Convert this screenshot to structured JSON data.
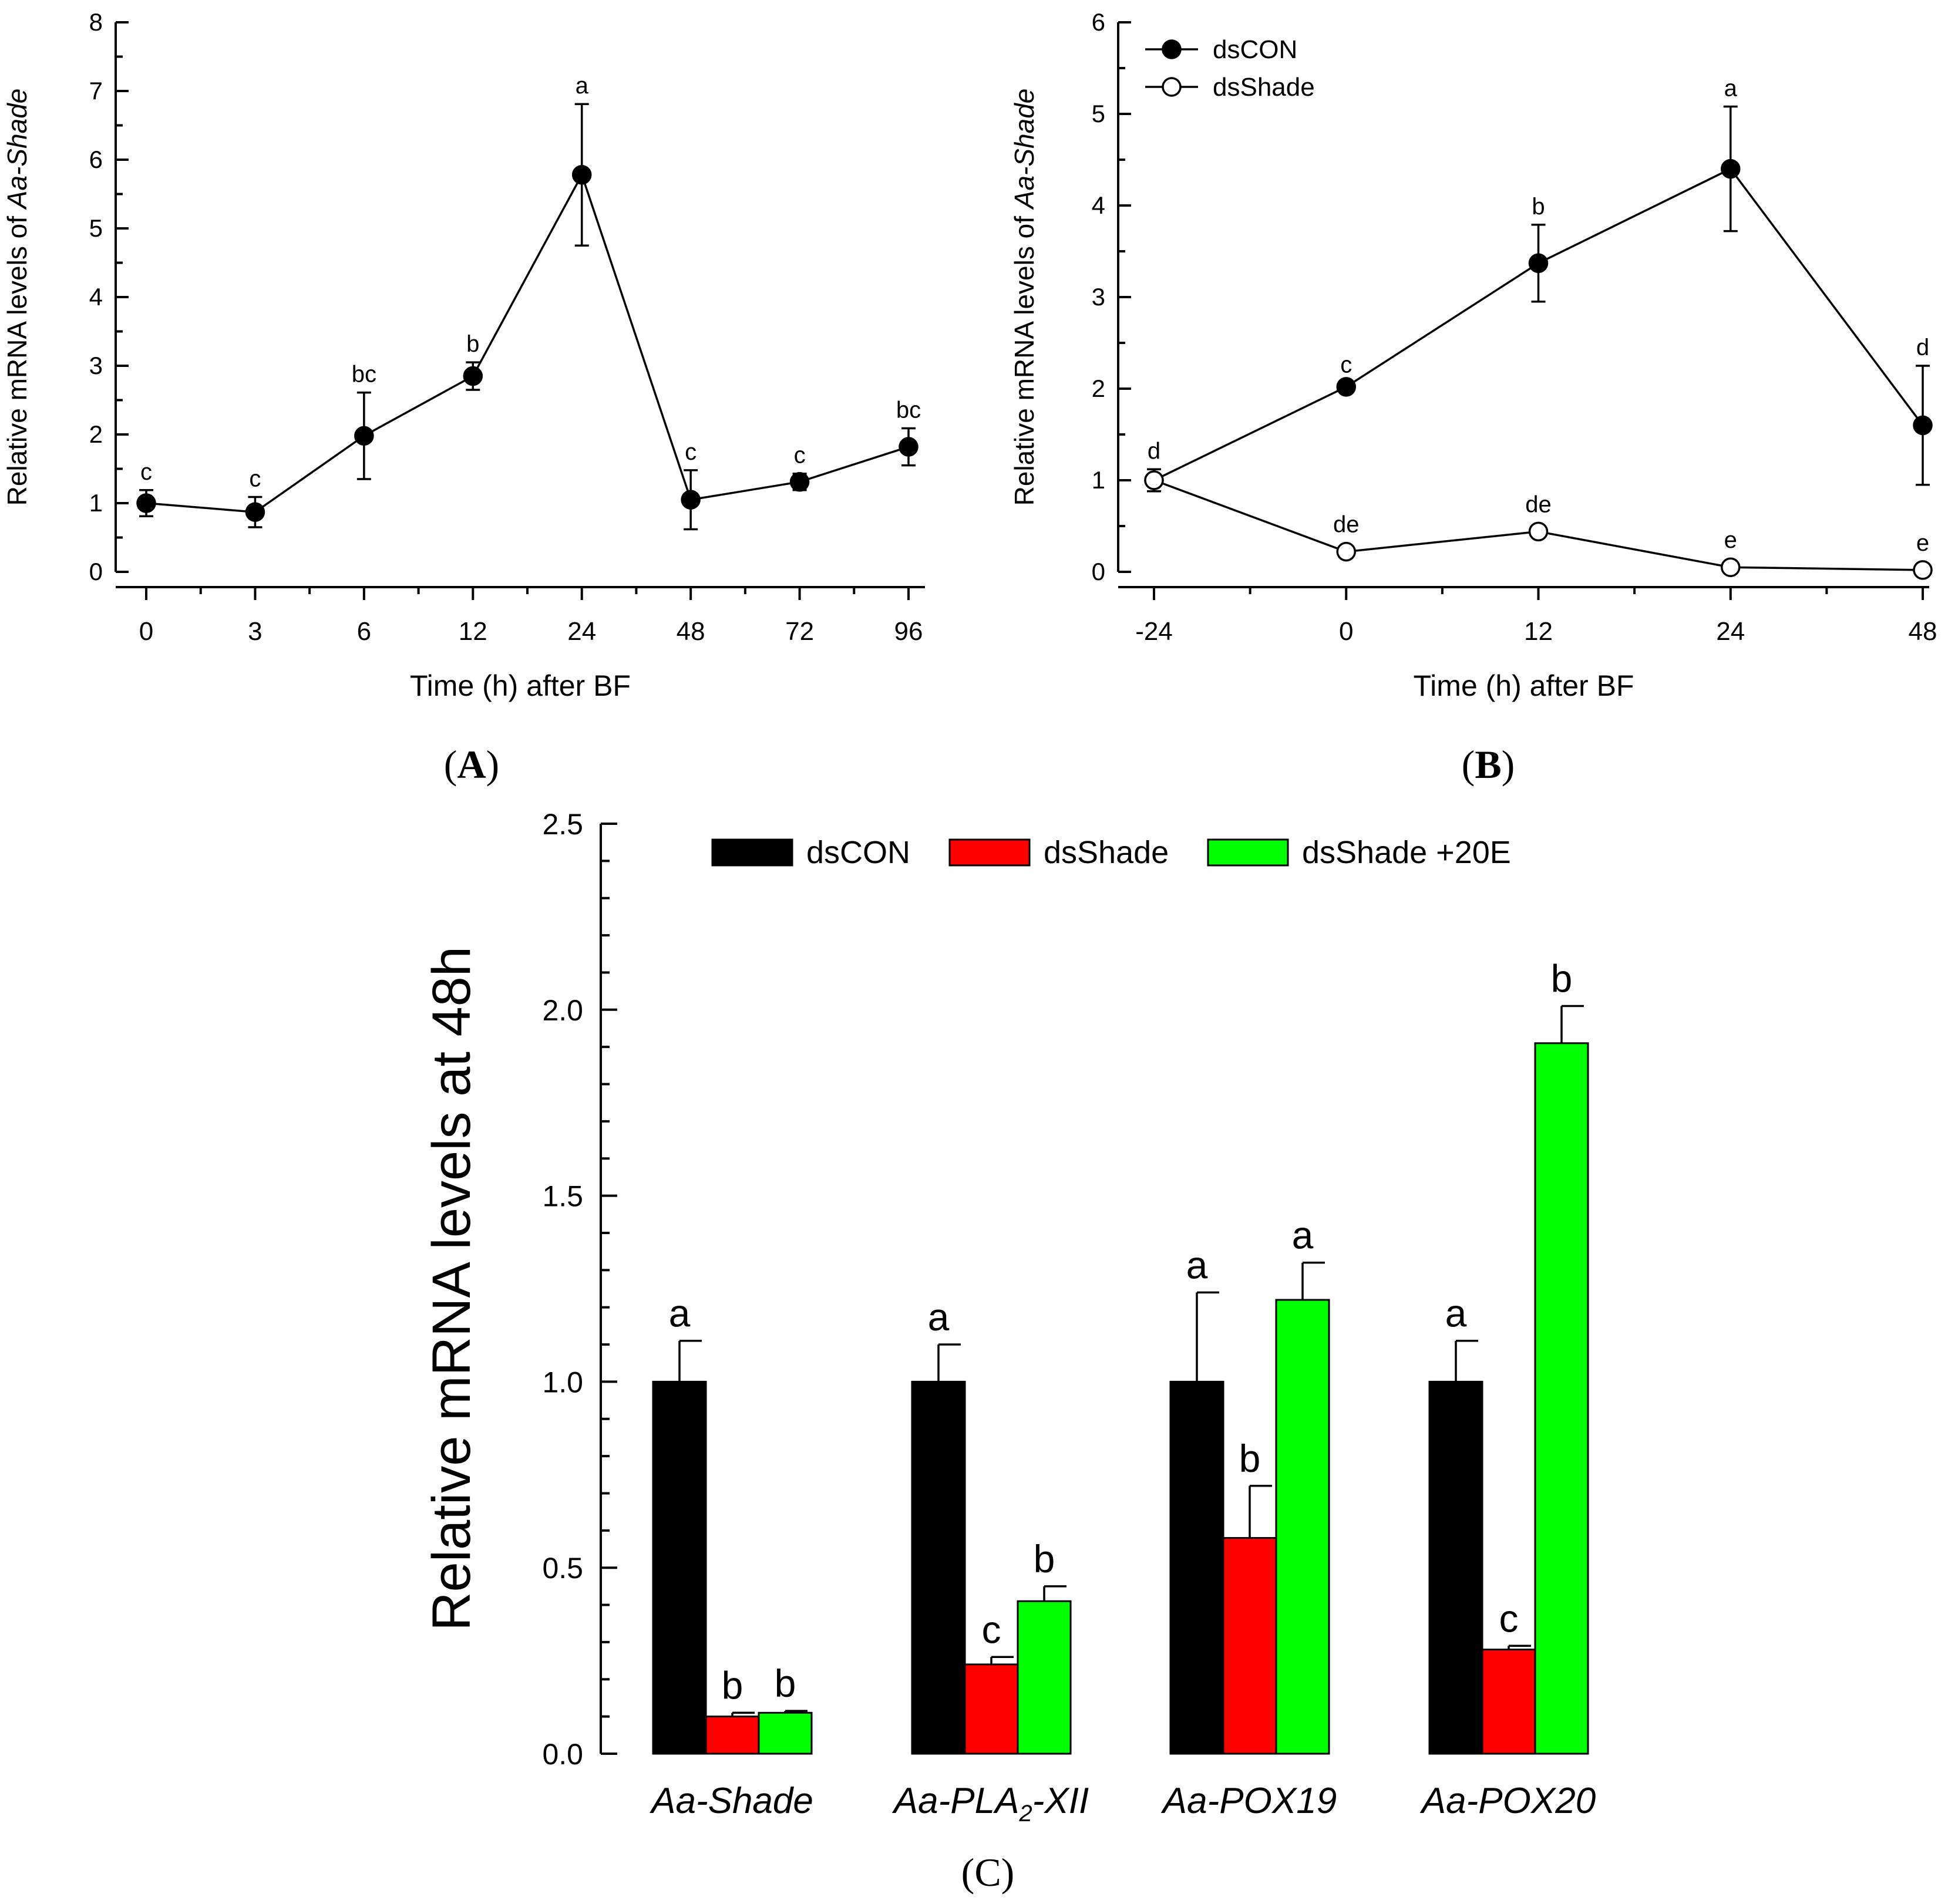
{
  "colors": {
    "dsCON": "#000000",
    "dsShade": "#ff0000",
    "dsShade_20E": "#00ff00",
    "marker_open": "#ffffff"
  },
  "chart_data": [
    {
      "id": "A",
      "type": "line",
      "panel_label": "A",
      "xlabel": "Time (h) after BF",
      "ylabel_prefix": "Relative mRNA levels of ",
      "ylabel_gene": "Aa-Shade",
      "ylim": [
        0,
        8
      ],
      "yticks": [
        "0",
        "1",
        "2",
        "3",
        "4",
        "5",
        "6",
        "7",
        "8"
      ],
      "categories": [
        "0",
        "3",
        "6",
        "12",
        "24",
        "48",
        "72",
        "96"
      ],
      "grid": false,
      "series": [
        {
          "name": "Aa-Shade",
          "marker": "filled",
          "values": [
            1.0,
            0.87,
            1.98,
            2.85,
            5.78,
            1.05,
            1.31,
            1.82
          ],
          "errors": [
            0.19,
            0.22,
            0.63,
            0.2,
            1.03,
            0.43,
            0.12,
            0.27
          ],
          "letters": [
            "c",
            "c",
            "bc",
            "b",
            "a",
            "c",
            "c",
            "bc"
          ]
        }
      ]
    },
    {
      "id": "B",
      "type": "line",
      "panel_label": "B",
      "xlabel": "Time (h) after BF",
      "ylabel_prefix": "Relative mRNA levels of ",
      "ylabel_gene": "Aa-Shade",
      "ylim": [
        0,
        6
      ],
      "yticks": [
        "0",
        "1",
        "2",
        "3",
        "4",
        "5",
        "6"
      ],
      "categories": [
        "-24",
        "0",
        "12",
        "24",
        "48"
      ],
      "grid": false,
      "legend": {
        "position": "top-left",
        "entries": [
          "dsCON",
          "dsShade"
        ]
      },
      "series": [
        {
          "name": "dsCON",
          "marker": "filled",
          "values": [
            1.0,
            2.02,
            3.37,
            4.4,
            1.6
          ],
          "errors": [
            0.12,
            0.04,
            0.42,
            0.68,
            0.65
          ],
          "letters": [
            "d",
            "c",
            "b",
            "a",
            "d"
          ]
        },
        {
          "name": "dsShade",
          "marker": "open",
          "values": [
            1.0,
            0.22,
            0.44,
            0.05,
            0.02
          ],
          "errors": [
            0,
            0,
            0,
            0,
            0
          ],
          "letters": [
            "",
            "de",
            "de",
            "e",
            "e"
          ]
        }
      ]
    },
    {
      "id": "C",
      "type": "bar",
      "panel_label": "C",
      "ylabel": "Relative mRNA levels at 48h",
      "ylim": [
        0,
        2.5
      ],
      "yticks": [
        "0.0",
        "0.5",
        "1.0",
        "1.5",
        "2.0",
        "2.5"
      ],
      "grid": false,
      "legend": {
        "position": "top",
        "entries": [
          "dsCON",
          "dsShade",
          "dsShade +20E"
        ]
      },
      "categories": [
        {
          "label": "Aa-Shade"
        },
        {
          "label_main": "Aa-PLA",
          "label_sub": "2",
          "label_tail": "-XII"
        },
        {
          "label": "Aa-POX19"
        },
        {
          "label": "Aa-POX20"
        }
      ],
      "series": [
        {
          "name": "dsCON",
          "color_key": "dsCON",
          "values": [
            1.0,
            1.0,
            1.0,
            1.0
          ],
          "errors": [
            0.11,
            0.1,
            0.24,
            0.11
          ],
          "letters": [
            "a",
            "a",
            "a",
            "a"
          ]
        },
        {
          "name": "dsShade",
          "color_key": "dsShade",
          "values": [
            0.1,
            0.24,
            0.58,
            0.28
          ],
          "errors": [
            0.01,
            0.02,
            0.14,
            0.01
          ],
          "letters": [
            "b",
            "c",
            "b",
            "c"
          ]
        },
        {
          "name": "dsShade +20E",
          "color_key": "dsShade_20E",
          "values": [
            0.11,
            0.41,
            1.22,
            1.91
          ],
          "errors": [
            0.005,
            0.04,
            0.1,
            0.1
          ],
          "letters": [
            "b",
            "b",
            "a",
            "b"
          ]
        }
      ]
    }
  ]
}
